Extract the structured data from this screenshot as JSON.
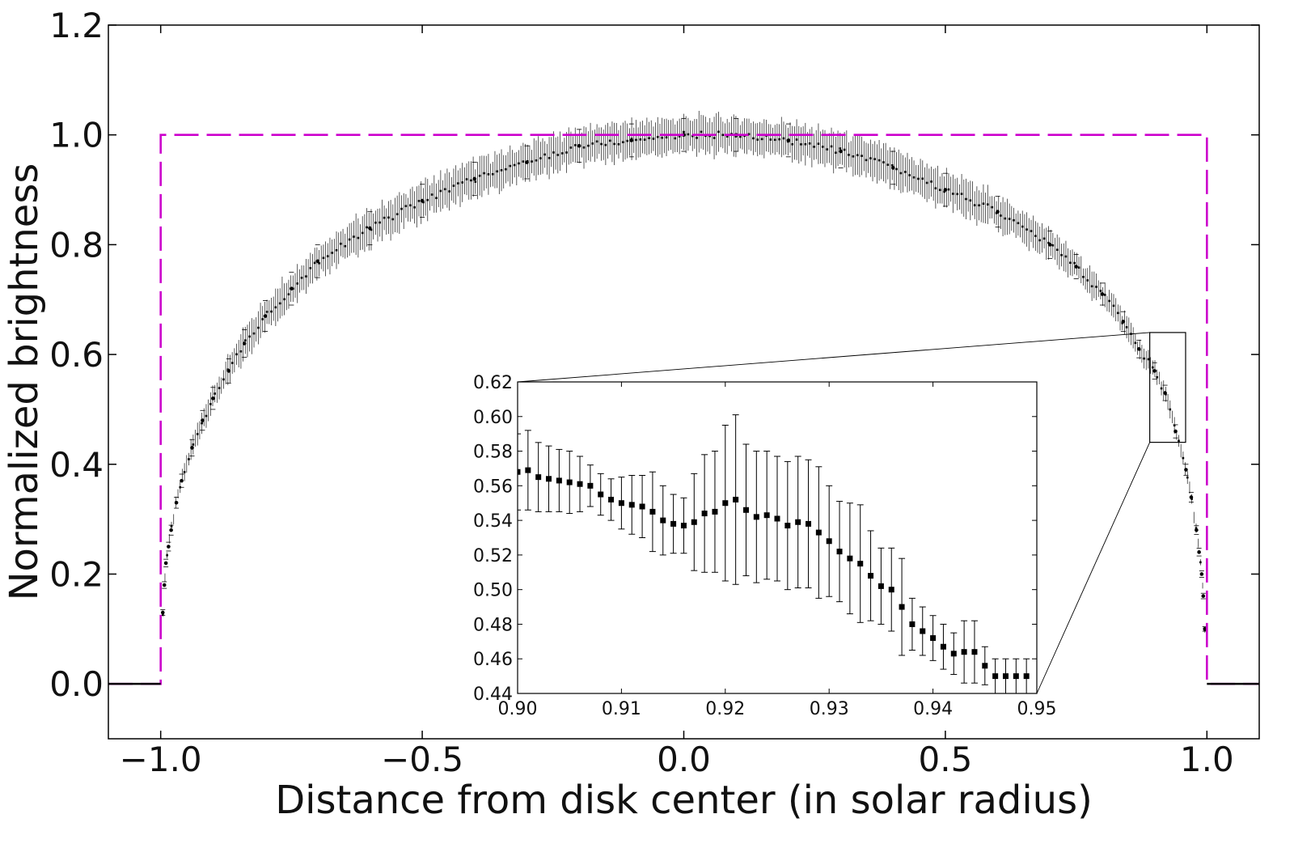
{
  "chart_data": [
    {
      "type": "scatter",
      "title": "",
      "xlabel": "Distance from disk center (in solar radius)",
      "ylabel": "Normalized brightness",
      "xlim": [
        -1.1,
        1.1
      ],
      "ylim": [
        -0.1,
        1.2
      ],
      "xticks": [
        -1.0,
        -0.5,
        0.0,
        0.5,
        1.0
      ],
      "xtick_labels": [
        "−1.0",
        "−0.5",
        "0.0",
        "0.5",
        "1.0"
      ],
      "yticks": [
        0.0,
        0.2,
        0.4,
        0.6,
        0.8,
        1.0,
        1.2
      ],
      "ytick_labels": [
        "0.0",
        "0.2",
        "0.4",
        "0.6",
        "0.8",
        "1.0",
        "1.2"
      ],
      "grid": false,
      "series": [
        {
          "kind": "profile",
          "style": "black points with error bars",
          "color": "#000000",
          "x": [
            -0.996,
            -0.993,
            -0.99,
            -0.985,
            -0.98,
            -0.97,
            -0.96,
            -0.94,
            -0.92,
            -0.9,
            -0.87,
            -0.84,
            -0.8,
            -0.75,
            -0.7,
            -0.6,
            -0.5,
            -0.4,
            -0.3,
            -0.2,
            -0.1,
            0.0,
            0.1,
            0.2,
            0.3,
            0.4,
            0.5,
            0.6,
            0.7,
            0.75,
            0.8,
            0.84,
            0.87,
            0.9,
            0.92,
            0.94,
            0.96,
            0.97,
            0.98,
            0.985,
            0.99,
            0.993,
            0.996
          ],
          "y": [
            0.13,
            0.18,
            0.22,
            0.25,
            0.28,
            0.33,
            0.37,
            0.43,
            0.48,
            0.52,
            0.57,
            0.62,
            0.67,
            0.72,
            0.77,
            0.83,
            0.88,
            0.92,
            0.95,
            0.98,
            0.99,
            1.0,
            1.0,
            0.99,
            0.97,
            0.94,
            0.9,
            0.86,
            0.8,
            0.76,
            0.71,
            0.66,
            0.61,
            0.57,
            0.53,
            0.46,
            0.39,
            0.34,
            0.28,
            0.24,
            0.2,
            0.16,
            0.1
          ],
          "yerr": [
            0.005,
            0.006,
            0.007,
            0.008,
            0.009,
            0.01,
            0.012,
            0.015,
            0.018,
            0.02,
            0.022,
            0.025,
            0.028,
            0.03,
            0.03,
            0.03,
            0.03,
            0.03,
            0.03,
            0.03,
            0.03,
            0.03,
            0.03,
            0.03,
            0.03,
            0.03,
            0.03,
            0.028,
            0.025,
            0.022,
            0.02,
            0.018,
            0.016,
            0.015,
            0.014,
            0.012,
            0.01,
            0.009,
            0.008,
            0.007,
            0.006,
            0.005,
            0.004
          ]
        },
        {
          "kind": "uniform-disk",
          "style": "magenta dashed step",
          "color": "#cc00cc",
          "x": [
            -1.1,
            -1.0,
            -1.0,
            1.0,
            1.0,
            1.1
          ],
          "y": [
            0.0,
            0.0,
            1.0,
            1.0,
            0.0,
            0.0
          ]
        },
        {
          "kind": "off-disk",
          "style": "black solid",
          "color": "#000000",
          "x": [
            -1.1,
            -1.0,
            1.0,
            1.1
          ],
          "y": [
            0.0,
            0.0,
            0.0,
            0.0
          ],
          "segments": [
            [
              -1.1,
              -1.0
            ],
            [
              1.0,
              1.1
            ]
          ]
        }
      ],
      "zoom_box": {
        "xlim": [
          0.9,
          0.95
        ],
        "ylim": [
          0.44,
          0.64
        ]
      },
      "colors": {
        "curve": "#cc00cc",
        "points": "#000000",
        "axes": "#000000"
      }
    },
    {
      "type": "scatter",
      "role": "inset",
      "title": "",
      "xlabel": "",
      "ylabel": "",
      "xlim": [
        0.9,
        0.95
      ],
      "ylim": [
        0.44,
        0.62
      ],
      "xticks": [
        0.9,
        0.91,
        0.92,
        0.93,
        0.94,
        0.95
      ],
      "xtick_labels": [
        "0.90",
        "0.91",
        "0.92",
        "0.93",
        "0.94",
        "0.95"
      ],
      "yticks": [
        0.44,
        0.46,
        0.48,
        0.5,
        0.52,
        0.54,
        0.56,
        0.58,
        0.6,
        0.62
      ],
      "ytick_labels": [
        "0.44",
        "0.46",
        "0.48",
        "0.50",
        "0.52",
        "0.54",
        "0.56",
        "0.58",
        "0.60",
        "0.62"
      ],
      "grid": false,
      "series": [
        {
          "style": "black squares with error bars",
          "color": "#000000",
          "x": [
            0.9,
            0.901,
            0.902,
            0.903,
            0.904,
            0.905,
            0.906,
            0.907,
            0.908,
            0.909,
            0.91,
            0.911,
            0.912,
            0.913,
            0.914,
            0.915,
            0.916,
            0.917,
            0.918,
            0.919,
            0.92,
            0.921,
            0.922,
            0.923,
            0.924,
            0.925,
            0.926,
            0.927,
            0.928,
            0.929,
            0.93,
            0.931,
            0.932,
            0.933,
            0.934,
            0.935,
            0.936,
            0.937,
            0.938,
            0.939,
            0.94,
            0.941,
            0.942,
            0.943,
            0.944,
            0.945,
            0.946,
            0.947,
            0.948,
            0.949
          ],
          "y": [
            0.568,
            0.569,
            0.565,
            0.564,
            0.563,
            0.562,
            0.561,
            0.56,
            0.555,
            0.552,
            0.55,
            0.549,
            0.548,
            0.545,
            0.54,
            0.538,
            0.537,
            0.539,
            0.544,
            0.545,
            0.55,
            0.552,
            0.546,
            0.542,
            0.543,
            0.541,
            0.537,
            0.539,
            0.538,
            0.533,
            0.528,
            0.522,
            0.518,
            0.515,
            0.508,
            0.502,
            0.5,
            0.49,
            0.48,
            0.476,
            0.472,
            0.467,
            0.463,
            0.464,
            0.464,
            0.456,
            0.45,
            0.45,
            0.45,
            0.45
          ],
          "yerr": [
            0.022,
            0.023,
            0.02,
            0.019,
            0.018,
            0.018,
            0.016,
            0.012,
            0.012,
            0.012,
            0.015,
            0.017,
            0.018,
            0.023,
            0.02,
            0.017,
            0.016,
            0.028,
            0.034,
            0.035,
            0.045,
            0.049,
            0.038,
            0.038,
            0.037,
            0.036,
            0.037,
            0.038,
            0.037,
            0.038,
            0.032,
            0.029,
            0.032,
            0.034,
            0.026,
            0.022,
            0.024,
            0.028,
            0.015,
            0.014,
            0.013,
            0.013,
            0.012,
            0.018,
            0.018,
            0.011,
            0.01,
            0.01,
            0.01,
            0.01
          ]
        }
      ]
    }
  ]
}
